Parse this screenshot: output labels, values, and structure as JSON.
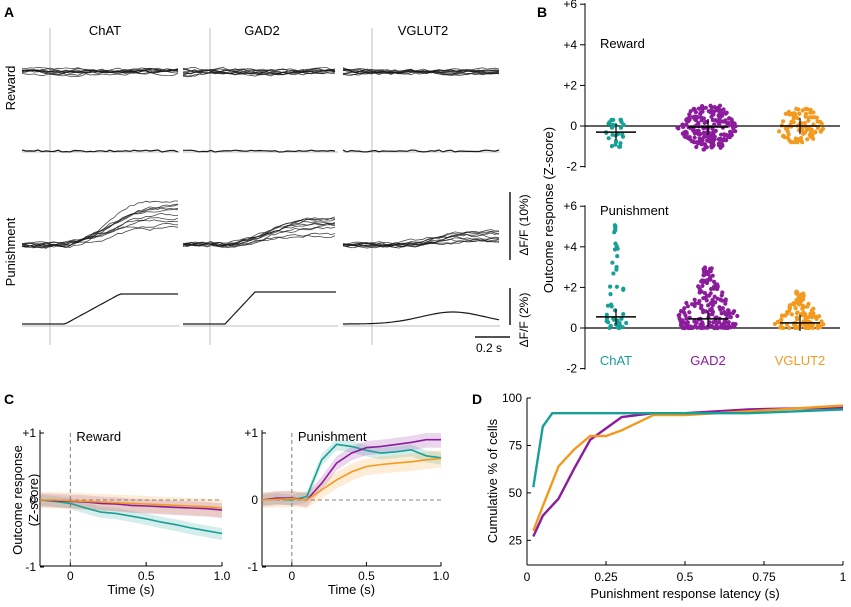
{
  "colors": {
    "chat": "#17a095",
    "gad2": "#8b1c9c",
    "vglut2": "#f39a1e",
    "trace": "#1a1a1a",
    "guide": "#bfbfbf"
  },
  "panels": {
    "A": "A",
    "B": "B",
    "C": "C",
    "D": "D"
  },
  "panel_a": {
    "columns": [
      "ChAT",
      "GAD2",
      "VGLUT2"
    ],
    "rows": [
      "Reward",
      "Punishment"
    ],
    "scale_10": "ΔF/F (10%)",
    "scale_2": "ΔF/F (2%)",
    "time_scale": "0.2 s"
  },
  "chart_data": [
    {
      "id": "B",
      "type": "scatter",
      "ylabel": "Outcome response (Z-score)",
      "categories": [
        "ChAT",
        "GAD2",
        "VGLUT2"
      ],
      "yticks": [
        "+6",
        "+4",
        "+2",
        "0",
        "-2"
      ],
      "subplots": [
        {
          "title": "Reward",
          "ylim": [
            -2,
            6
          ],
          "medians": [
            -0.3,
            -0.05,
            0.0
          ],
          "ranges": [
            [
              -1.5,
              0.3
            ],
            [
              -1.2,
              1.0
            ],
            [
              -0.8,
              1.0
            ]
          ],
          "counts": [
            30,
            200,
            90
          ]
        },
        {
          "title": "Punishment",
          "ylim": [
            -2,
            6
          ],
          "medians": [
            0.55,
            0.45,
            0.25
          ],
          "ranges": [
            [
              0.0,
              5.3
            ],
            [
              0.0,
              3.0
            ],
            [
              0.0,
              1.8
            ]
          ],
          "counts": [
            45,
            200,
            110
          ]
        }
      ]
    },
    {
      "id": "C",
      "type": "line",
      "ylabel": "Outcome response\n(Z-score)",
      "xlabel": "Time (s)",
      "xticks": [
        "0",
        "0.5",
        "1.0"
      ],
      "yticks": [
        "+1",
        "0",
        "-1"
      ],
      "xlim": [
        -0.2,
        1.0
      ],
      "ylim": [
        -1,
        1
      ],
      "subplots": [
        {
          "title": "Reward",
          "x": [
            -0.2,
            -0.1,
            0.0,
            0.1,
            0.2,
            0.3,
            0.4,
            0.5,
            0.6,
            0.7,
            0.8,
            0.9,
            1.0
          ],
          "series": [
            {
              "name": "ChAT",
              "values": [
                0.0,
                -0.02,
                -0.05,
                -0.12,
                -0.18,
                -0.2,
                -0.24,
                -0.28,
                -0.33,
                -0.37,
                -0.42,
                -0.46,
                -0.5
              ]
            },
            {
              "name": "GAD2",
              "values": [
                0.0,
                -0.01,
                -0.02,
                -0.03,
                -0.05,
                -0.06,
                -0.08,
                -0.09,
                -0.1,
                -0.11,
                -0.12,
                -0.13,
                -0.15
              ]
            },
            {
              "name": "VGLUT2",
              "values": [
                0.0,
                0.0,
                -0.01,
                -0.02,
                -0.03,
                -0.04,
                -0.05,
                -0.06,
                -0.07,
                -0.08,
                -0.09,
                -0.1,
                -0.12
              ]
            }
          ]
        },
        {
          "title": "Punishment",
          "x": [
            -0.2,
            -0.1,
            0.0,
            0.1,
            0.2,
            0.3,
            0.4,
            0.5,
            0.6,
            0.7,
            0.8,
            0.9,
            1.0
          ],
          "series": [
            {
              "name": "ChAT",
              "values": [
                0.0,
                0.02,
                0.0,
                0.05,
                0.6,
                0.83,
                0.8,
                0.74,
                0.7,
                0.72,
                0.75,
                0.66,
                0.63
              ]
            },
            {
              "name": "GAD2",
              "values": [
                0.0,
                0.03,
                0.03,
                0.0,
                0.25,
                0.55,
                0.7,
                0.78,
                0.8,
                0.83,
                0.86,
                0.9,
                0.9
              ]
            },
            {
              "name": "VGLUT2",
              "values": [
                0.0,
                0.01,
                0.02,
                0.0,
                0.15,
                0.3,
                0.42,
                0.5,
                0.53,
                0.55,
                0.57,
                0.6,
                0.62
              ]
            }
          ]
        }
      ]
    },
    {
      "id": "D",
      "type": "line",
      "xlabel": "Punishment response latency (s)",
      "ylabel": "Cumulative % of cells",
      "xticks": [
        "0",
        "0.25",
        "0.5",
        "0.75",
        "1"
      ],
      "yticks": [
        "100",
        "75",
        "50",
        "25"
      ],
      "xlim": [
        0,
        1
      ],
      "ylim": [
        12,
        100
      ],
      "series": [
        {
          "name": "ChAT",
          "x": [
            0.02,
            0.05,
            0.08,
            0.12,
            0.2,
            0.3,
            0.5,
            0.7,
            1.0
          ],
          "values": [
            53,
            85,
            92,
            92,
            92,
            92,
            92,
            92,
            94
          ]
        },
        {
          "name": "GAD2",
          "x": [
            0.02,
            0.05,
            0.1,
            0.15,
            0.2,
            0.25,
            0.3,
            0.35,
            0.4,
            0.5,
            0.7,
            1.0
          ],
          "values": [
            27,
            38,
            47,
            63,
            78,
            84,
            90,
            91,
            92,
            92,
            94,
            95
          ]
        },
        {
          "name": "VGLUT2",
          "x": [
            0.02,
            0.05,
            0.1,
            0.15,
            0.2,
            0.25,
            0.3,
            0.35,
            0.4,
            0.5,
            0.6,
            0.7,
            0.8,
            0.9,
            1.0
          ],
          "values": [
            30,
            43,
            64,
            73,
            80,
            80,
            83,
            87,
            91,
            91,
            92,
            93,
            94,
            95,
            96
          ]
        }
      ]
    }
  ]
}
